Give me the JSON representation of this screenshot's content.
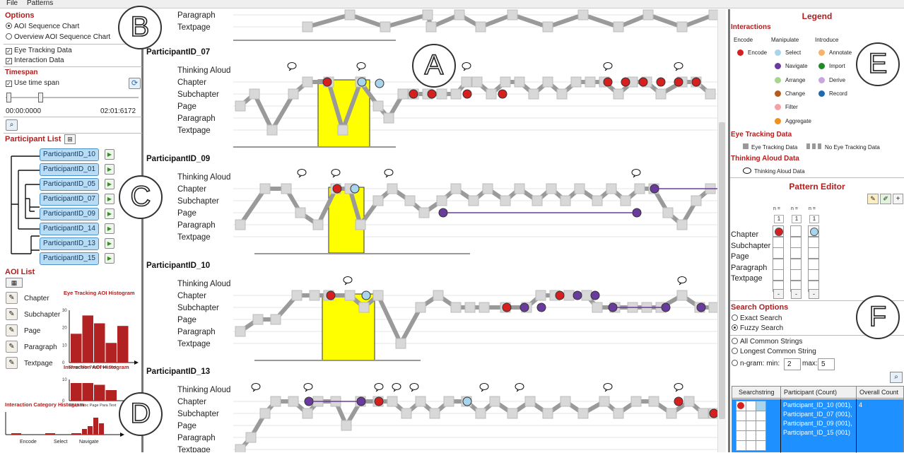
{
  "menu": {
    "file": "File",
    "patterns": "Patterns"
  },
  "options": {
    "title": "Options",
    "aoi_seq": "AOI Sequence Chart",
    "overview": "Overview AOI Sequence Chart",
    "eye": "Eye Tracking Data",
    "interaction": "Interaction Data"
  },
  "timespan": {
    "title": "Timespan",
    "use": "Use time span",
    "start": "00:00:0000",
    "end": "02:01:6172"
  },
  "participants": {
    "title": "Participant List",
    "items": [
      "ParticipantID_10",
      "ParticipantID_01",
      "ParticipantID_05",
      "ParticipantID_07",
      "ParticipantID_09",
      "ParticipantID_14",
      "ParticipantID_13",
      "ParticipantID_15"
    ]
  },
  "aoi": {
    "title": "AOI List",
    "items": [
      "Chapter",
      "Subchapter",
      "Page",
      "Paragraph",
      "Textpage"
    ],
    "hist1_title": "Eye Tracking AOI Histogram",
    "hist2_title": "Interaction AOI Histogram",
    "hist3_title": "Interaction Category Histogram",
    "hist_cats": "Chap Subc Page Para Text",
    "cat_x": [
      "Encode",
      "Select",
      "Navigate"
    ],
    "y_ticks": [
      "30",
      "20",
      "10",
      "0"
    ],
    "y_ticks2": [
      "10",
      "0"
    ],
    "hist1": [
      22,
      36,
      30,
      15,
      28
    ],
    "hist2": [
      10,
      10,
      9,
      6,
      0
    ],
    "hist3": [
      0.5,
      0.5,
      0.5,
      2,
      3,
      6,
      4
    ]
  },
  "chart": {
    "rows": [
      "Thinking Aloud",
      "Chapter",
      "Subchapter",
      "Page",
      "Paragraph",
      "Textpage"
    ],
    "participants": [
      "ParticipantID_07",
      "ParticipantID_09",
      "ParticipantID_10",
      "ParticipantID_13"
    ],
    "top_rows": [
      "Paragraph",
      "Textpage"
    ]
  },
  "legend": {
    "title": "Legend",
    "interactions": "Interactions",
    "cols": [
      "Encode",
      "Manipulate",
      "Introduce"
    ],
    "items": [
      {
        "label": "Encode",
        "color": "#d62020"
      },
      {
        "label": "Select",
        "color": "#a8d4ec"
      },
      {
        "label": "Navigate",
        "color": "#6a3b9c"
      },
      {
        "label": "Arrange",
        "color": "#a6d68c"
      },
      {
        "label": "Change",
        "color": "#b35c1e"
      },
      {
        "label": "Filter",
        "color": "#f4a3a3"
      },
      {
        "label": "Aggregate",
        "color": "#f0901e"
      },
      {
        "label": "Annotate",
        "color": "#f5b46a"
      },
      {
        "label": "Import",
        "color": "#1e8a2a"
      },
      {
        "label": "Derive",
        "color": "#c8a6de"
      },
      {
        "label": "Record",
        "color": "#1f6ab0"
      }
    ],
    "eye_title": "Eye Tracking Data",
    "eye_yes": "Eye Tracking Data",
    "eye_no": "No Eye Tracking Data",
    "ta_title": "Thinking Aloud Data",
    "ta_item": "Thinking Aloud Data"
  },
  "editor": {
    "title": "Pattern Editor",
    "n_label": "n =",
    "n_values": [
      "1",
      "1",
      "1"
    ],
    "rows": [
      "Chapter",
      "Subchapter",
      "Page",
      "Paragraph",
      "Textpage"
    ],
    "minus": "-"
  },
  "search": {
    "title": "Search Options",
    "exact": "Exact Search",
    "fuzzy": "Fuzzy Search",
    "all": "All Common Strings",
    "longest": "Longest Common String",
    "ngram": "n-gram:",
    "min_label": "min:",
    "min": "2",
    "max_label": "max:",
    "max": "5"
  },
  "results": {
    "cols": [
      "Searchstring",
      "Participant (Count)",
      "Overall Count"
    ],
    "participants": [
      "Participant_ID_10 (001),",
      "Participant_ID_07 (001),",
      "Participant_ID_09 (001),",
      "Participant_ID_15 (001)"
    ],
    "count": "4"
  },
  "labels": {
    "A": "A",
    "B": "B",
    "C": "C",
    "D": "D",
    "E": "E",
    "F": "F"
  }
}
